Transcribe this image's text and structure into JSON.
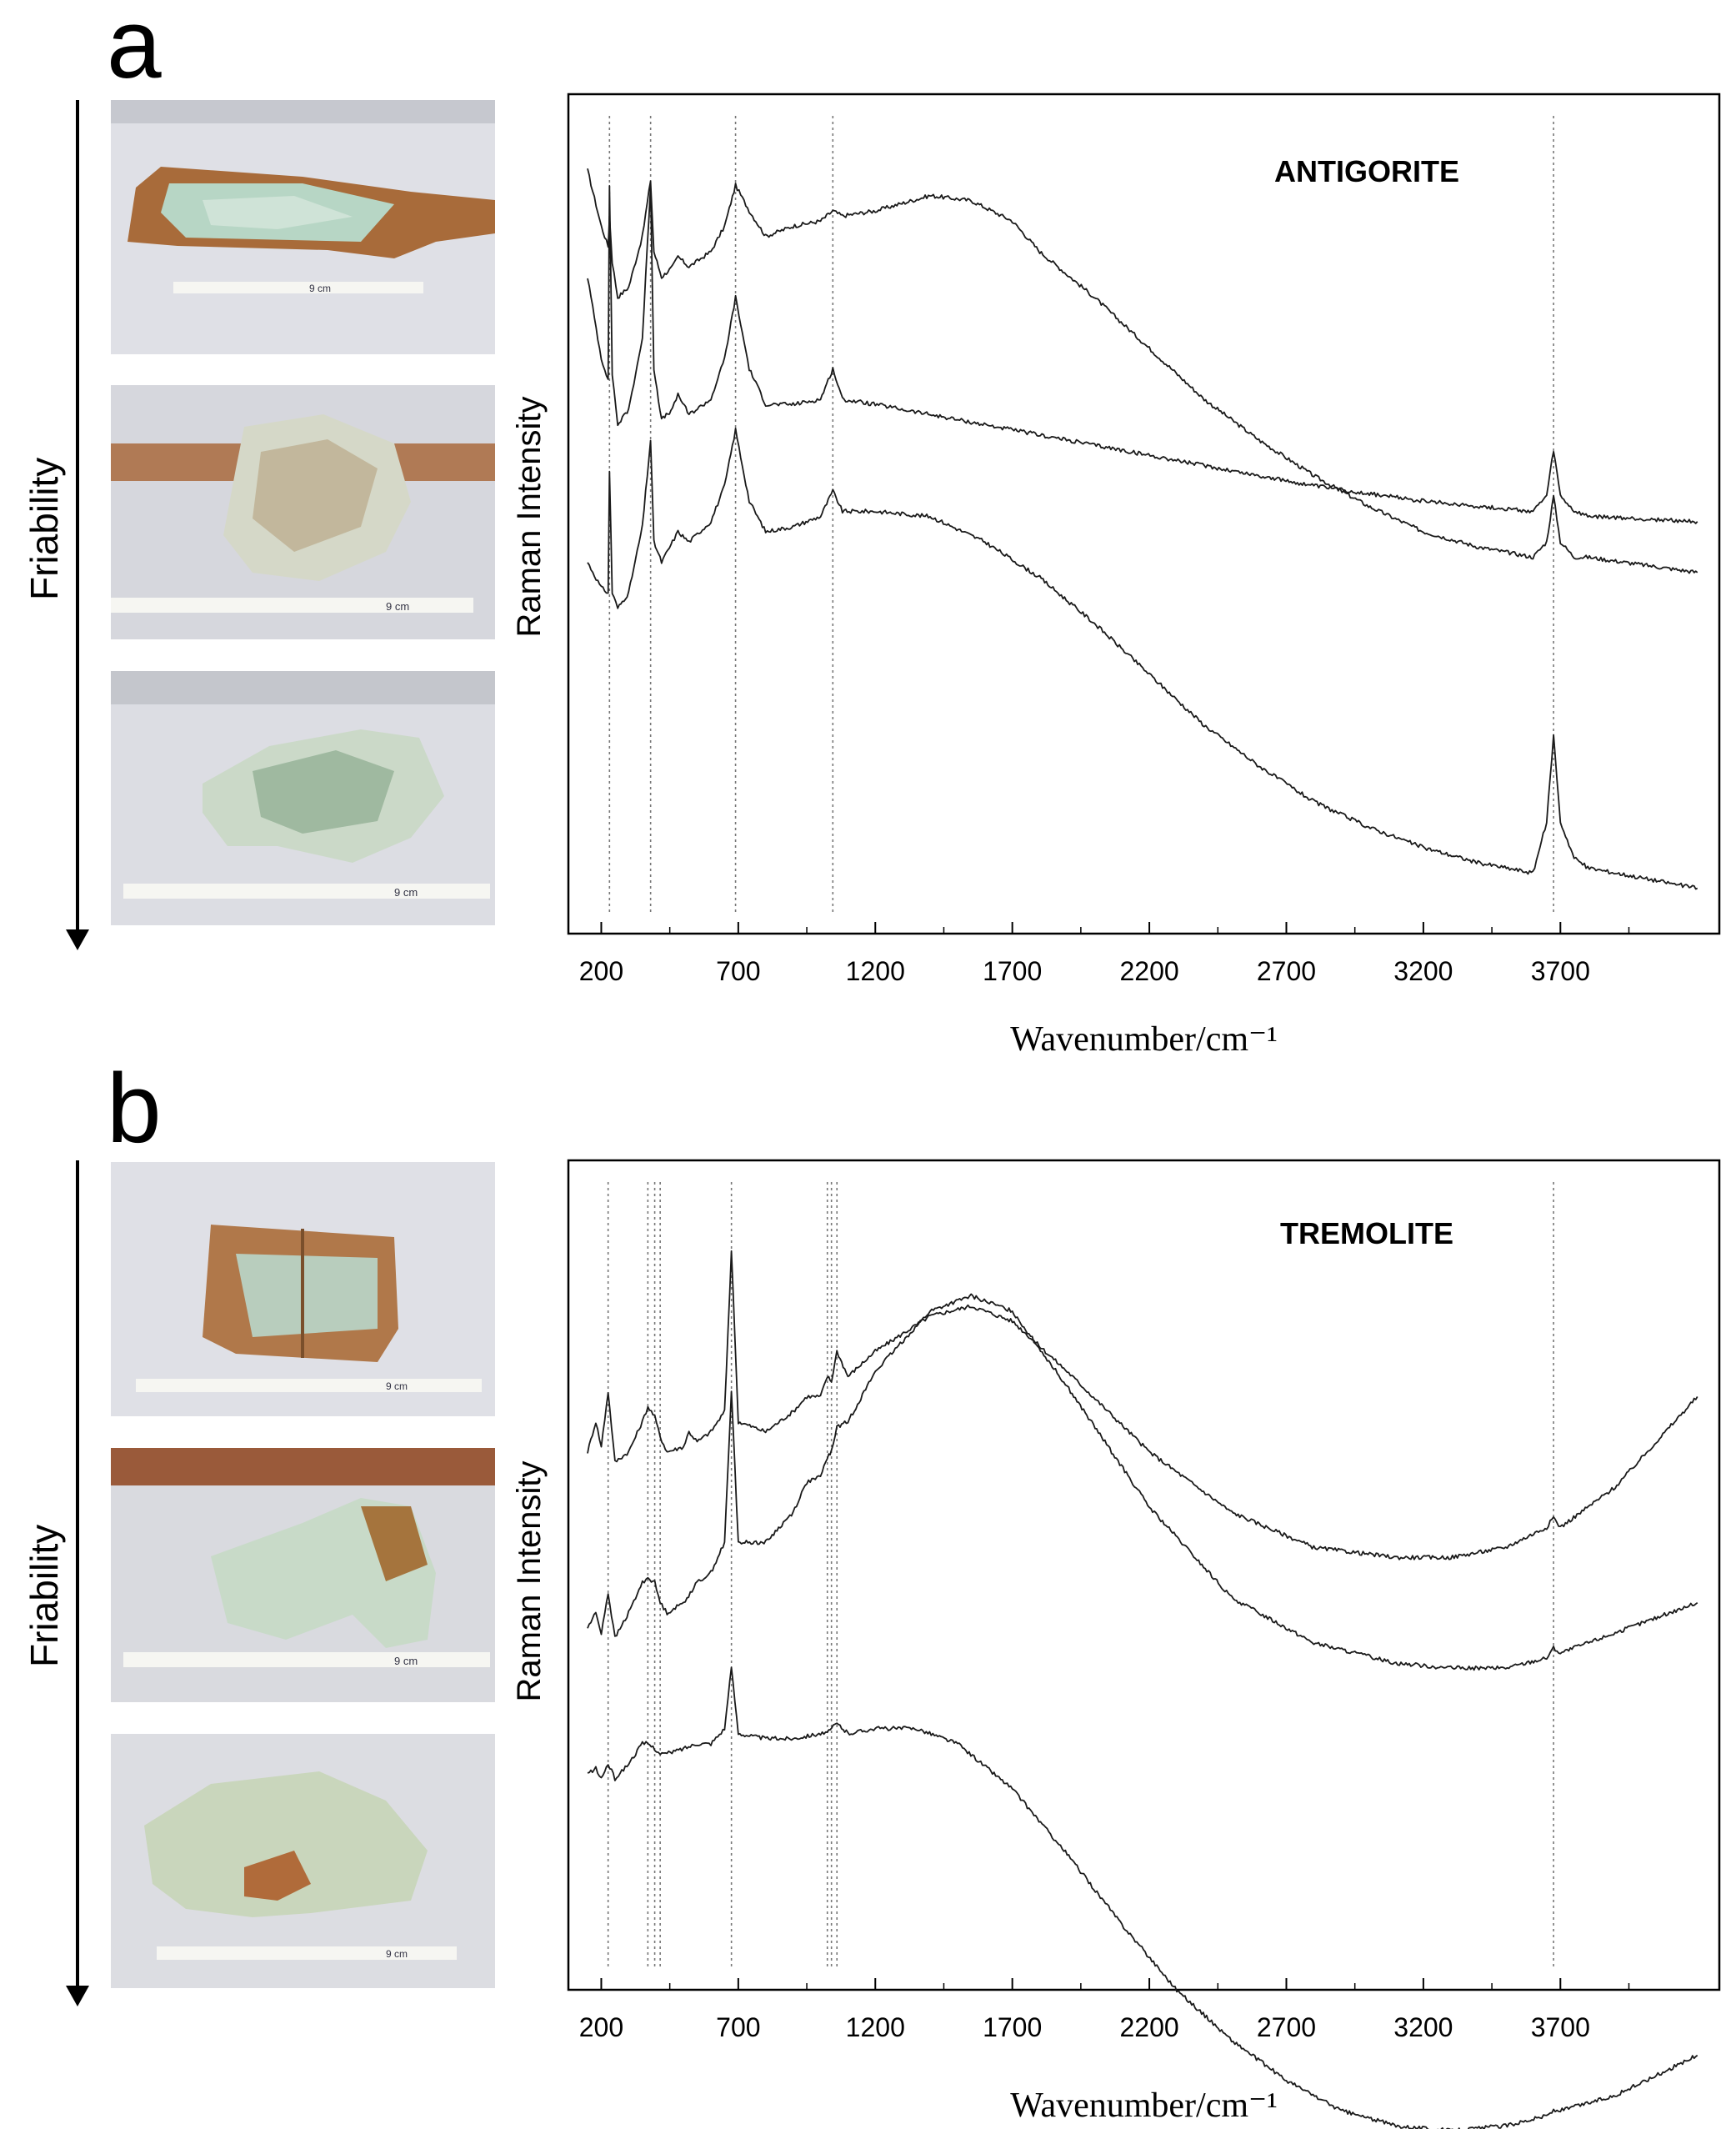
{
  "chart_data": [
    {
      "panel": "a",
      "type": "line",
      "title": "ANTIGORITE",
      "xlabel": "Wavenumber/cm⁻¹",
      "ylabel": "Raman Intensity",
      "xticks": [
        200,
        700,
        1200,
        1700,
        2200,
        2700,
        3200,
        3700
      ],
      "xlim": [
        80,
        4280
      ],
      "ref_lines": [
        230,
        380,
        690,
        1045,
        3675
      ],
      "series": [
        {
          "x": [
            150,
            200,
            225,
            230,
            240,
            260,
            300,
            350,
            380,
            392,
            420,
            460,
            480,
            520,
            600,
            650,
            690,
            740,
            800,
            900,
            1000,
            1045,
            1080,
            1200,
            1400,
            1550,
            1700,
            1800,
            2000,
            2200,
            2400,
            2600,
            2800,
            3000,
            3200,
            3400,
            3600,
            3650,
            3675,
            3700,
            3750,
            3800,
            4200
          ],
          "y": [
            0.95,
            0.84,
            0.8,
            0.86,
            0.77,
            0.7,
            0.72,
            0.82,
            0.93,
            0.79,
            0.74,
            0.76,
            0.78,
            0.76,
            0.79,
            0.84,
            0.92,
            0.87,
            0.82,
            0.84,
            0.85,
            0.87,
            0.86,
            0.87,
            0.9,
            0.89,
            0.85,
            0.79,
            0.7,
            0.6,
            0.5,
            0.42,
            0.35,
            0.29,
            0.24,
            0.21,
            0.19,
            0.22,
            0.31,
            0.22,
            0.19,
            0.19,
            0.16
          ]
        },
        {
          "x": [
            150,
            200,
            225,
            230,
            240,
            260,
            300,
            350,
            380,
            392,
            420,
            460,
            480,
            520,
            600,
            650,
            690,
            740,
            800,
            900,
            1000,
            1045,
            1080,
            1200,
            1400,
            1700,
            2000,
            2400,
            2800,
            3200,
            3600,
            3650,
            3675,
            3700,
            3750,
            3800,
            4200
          ],
          "y": [
            0.74,
            0.58,
            0.54,
            0.92,
            0.55,
            0.45,
            0.48,
            0.62,
            0.92,
            0.56,
            0.46,
            0.48,
            0.51,
            0.47,
            0.5,
            0.58,
            0.7,
            0.56,
            0.49,
            0.49,
            0.5,
            0.56,
            0.5,
            0.49,
            0.47,
            0.44,
            0.41,
            0.37,
            0.33,
            0.3,
            0.28,
            0.31,
            0.4,
            0.31,
            0.28,
            0.27,
            0.26
          ]
        },
        {
          "x": [
            150,
            200,
            225,
            230,
            240,
            260,
            300,
            350,
            380,
            392,
            420,
            460,
            480,
            520,
            600,
            650,
            690,
            740,
            800,
            900,
            1000,
            1045,
            1080,
            1200,
            1400,
            1600,
            1800,
            2000,
            2200,
            2400,
            2600,
            2800,
            3000,
            3200,
            3400,
            3600,
            3650,
            3675,
            3700,
            3750,
            3800,
            4200
          ],
          "y": [
            0.18,
            0.13,
            0.12,
            0.36,
            0.12,
            0.09,
            0.12,
            0.25,
            0.42,
            0.22,
            0.18,
            0.22,
            0.24,
            0.22,
            0.26,
            0.33,
            0.44,
            0.3,
            0.24,
            0.25,
            0.27,
            0.32,
            0.28,
            0.28,
            0.27,
            0.22,
            0.15,
            0.06,
            -0.04,
            -0.14,
            -0.22,
            -0.29,
            -0.34,
            -0.38,
            -0.41,
            -0.43,
            -0.33,
            -0.16,
            -0.33,
            -0.4,
            -0.42,
            -0.46
          ]
        }
      ]
    },
    {
      "panel": "b",
      "type": "line",
      "title": "TREMOLITE",
      "xlabel": "Wavenumber/cm⁻¹",
      "ylabel": "Raman Intensity",
      "xticks": [
        200,
        700,
        1200,
        1700,
        2200,
        2700,
        3200,
        3700
      ],
      "xlim": [
        80,
        4280
      ],
      "ref_lines": [
        225,
        370,
        395,
        415,
        675,
        1025,
        1040,
        1060,
        3675
      ],
      "series": [
        {
          "x": [
            150,
            180,
            200,
            225,
            250,
            300,
            350,
            370,
            395,
            415,
            440,
            500,
            520,
            550,
            600,
            650,
            675,
            700,
            800,
            900,
            950,
            1000,
            1025,
            1040,
            1060,
            1100,
            1200,
            1400,
            1550,
            1700,
            1900,
            2200,
            2500,
            2800,
            3100,
            3300,
            3500,
            3650,
            3675,
            3700,
            3900,
            4200
          ],
          "y": [
            0.52,
            0.58,
            0.53,
            0.64,
            0.5,
            0.52,
            0.58,
            0.61,
            0.59,
            0.55,
            0.52,
            0.53,
            0.56,
            0.54,
            0.56,
            0.6,
            0.92,
            0.58,
            0.56,
            0.6,
            0.63,
            0.63,
            0.67,
            0.66,
            0.72,
            0.67,
            0.72,
            0.79,
            0.81,
            0.78,
            0.68,
            0.52,
            0.4,
            0.33,
            0.31,
            0.31,
            0.33,
            0.37,
            0.39,
            0.37,
            0.45,
            0.63
          ]
        },
        {
          "x": [
            150,
            180,
            200,
            225,
            250,
            300,
            350,
            370,
            395,
            415,
            440,
            500,
            550,
            600,
            650,
            675,
            700,
            800,
            900,
            950,
            1000,
            1025,
            1040,
            1060,
            1100,
            1200,
            1400,
            1550,
            1700,
            1900,
            2200,
            2500,
            2800,
            3100,
            3300,
            3500,
            3650,
            3675,
            3700,
            3900,
            4200
          ],
          "y": [
            0.17,
            0.2,
            0.16,
            0.24,
            0.15,
            0.2,
            0.26,
            0.27,
            0.26,
            0.22,
            0.2,
            0.22,
            0.26,
            0.28,
            0.34,
            0.64,
            0.34,
            0.34,
            0.4,
            0.46,
            0.47,
            0.51,
            0.52,
            0.57,
            0.58,
            0.68,
            0.8,
            0.83,
            0.8,
            0.65,
            0.41,
            0.23,
            0.14,
            0.1,
            0.09,
            0.09,
            0.11,
            0.13,
            0.12,
            0.16,
            0.22
          ]
        },
        {
          "x": [
            150,
            180,
            200,
            225,
            250,
            300,
            350,
            370,
            395,
            415,
            440,
            500,
            550,
            600,
            650,
            675,
            700,
            800,
            900,
            1000,
            1025,
            1040,
            1060,
            1100,
            1200,
            1350,
            1500,
            1700,
            1900,
            2100,
            2300,
            2500,
            2700,
            2900,
            3100,
            3300,
            3500,
            3650,
            3675,
            3700,
            3900,
            4200
          ],
          "y": [
            -0.12,
            -0.11,
            -0.13,
            -0.1,
            -0.13,
            -0.1,
            -0.06,
            -0.06,
            -0.07,
            -0.08,
            -0.08,
            -0.07,
            -0.06,
            -0.06,
            -0.03,
            0.09,
            -0.04,
            -0.05,
            -0.05,
            -0.04,
            -0.04,
            -0.03,
            -0.02,
            -0.04,
            -0.03,
            -0.03,
            -0.06,
            -0.15,
            -0.28,
            -0.42,
            -0.55,
            -0.65,
            -0.73,
            -0.79,
            -0.82,
            -0.83,
            -0.82,
            -0.8,
            -0.79,
            -0.79,
            -0.76,
            -0.68
          ]
        }
      ]
    }
  ],
  "panels": {
    "a": {
      "letter": "a",
      "side_label": "Friability",
      "photos": [
        "9 cm",
        "9 cm",
        "9 cm"
      ]
    },
    "b": {
      "letter": "b",
      "side_label": "Friability",
      "photos": [
        "9 cm",
        "9 cm",
        "9 cm"
      ]
    }
  },
  "colors": {
    "line": "#1a1a1a",
    "frame": "#000000",
    "ref_line": "#777777",
    "photo_bg": "#dedfe4"
  }
}
